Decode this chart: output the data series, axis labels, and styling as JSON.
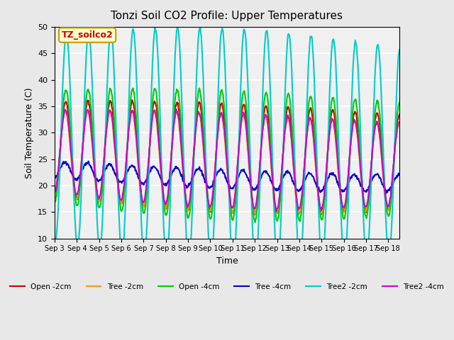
{
  "title": "Tonzi Soil CO2 Profile: Upper Temperatures",
  "xlabel": "Time",
  "ylabel": "Soil Temperature (C)",
  "annotation": "TZ_soilco2",
  "annotation_color": "#cc0000",
  "annotation_bg": "#ffffcc",
  "annotation_border": "#cc9900",
  "ylim": [
    10,
    50
  ],
  "n_days": 15.5,
  "n_points": 744,
  "x_tick_labels": [
    "Sep 3",
    "Sep 4",
    "Sep 5",
    "Sep 6",
    "Sep 7",
    "Sep 8",
    "Sep 9",
    "Sep 10",
    "Sep 11",
    "Sep 12",
    "Sep 13",
    "Sep 14",
    "Sep 15",
    "Sep 16",
    "Sep 17",
    "Sep 18"
  ],
  "background_color": "#e8e8e8",
  "plot_bg": "#f0f0f0",
  "grid_color": "#ffffff",
  "series": [
    {
      "label": "Open -2cm",
      "color": "#cc0000",
      "lw": 1.5
    },
    {
      "label": "Tree -2cm",
      "color": "#ff9900",
      "lw": 1.5
    },
    {
      "label": "Open -4cm",
      "color": "#00cc00",
      "lw": 1.5
    },
    {
      "label": "Tree -4cm",
      "color": "#0000cc",
      "lw": 1.5
    },
    {
      "label": "Tree2 -2cm",
      "color": "#00cccc",
      "lw": 1.5
    },
    {
      "label": "Tree2 -4cm",
      "color": "#cc00cc",
      "lw": 1.5
    }
  ]
}
